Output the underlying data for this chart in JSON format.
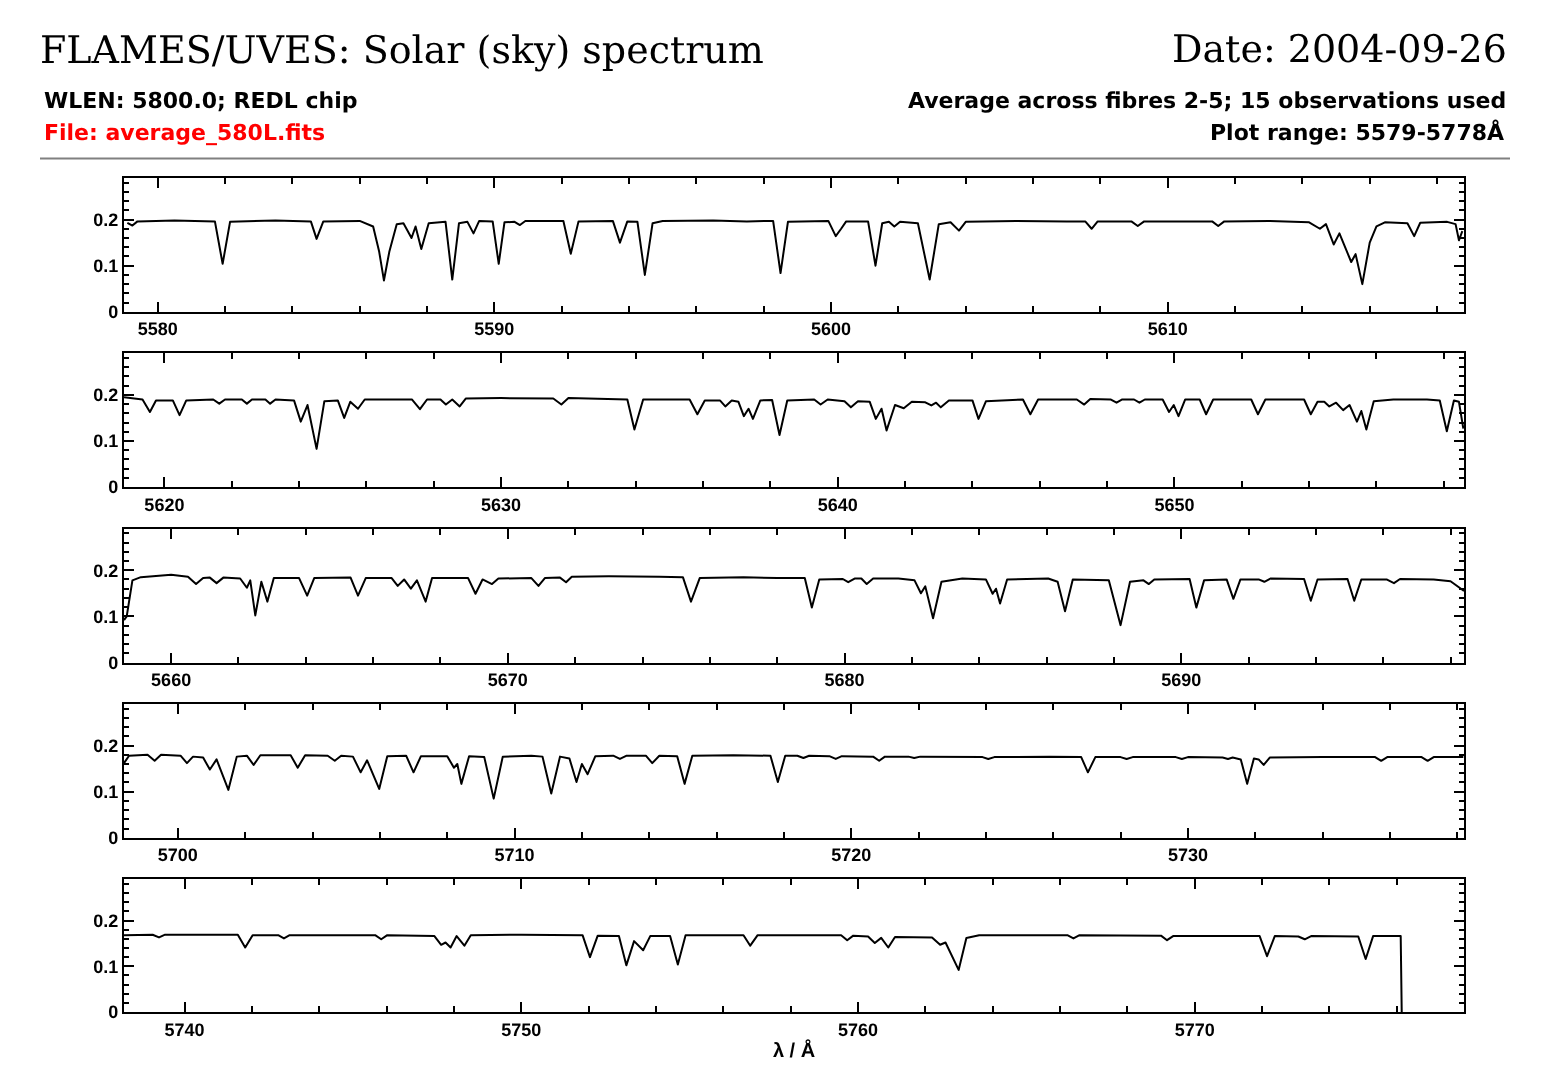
{
  "chart_data": [
    {
      "type": "line",
      "title": "FLAMES/UVES: Solar (sky) spectrum",
      "annotations": [
        "Date: 2004-09-26",
        "WLEN: 5800.0; REDL chip",
        "File: average_580L.fits",
        "Average across fibres 2-5; 15 observations used",
        "Plot range: 5579-5778Å"
      ],
      "color": "#000000",
      "xlim": [
        5579,
        5618.8
      ],
      "ylim": [
        0,
        0.29
      ],
      "xticks": [
        5580,
        {
          "value": 5582,
          "label": null
        },
        {
          "value": 5584,
          "label": null
        },
        {
          "value": 5586,
          "label": null
        },
        {
          "value": 5588,
          "label": null
        },
        5590,
        {
          "value": 5592,
          "label": null
        },
        {
          "value": 5594,
          "label": null
        },
        {
          "value": 5596,
          "label": null
        },
        {
          "value": 5598,
          "label": null
        },
        5600,
        {
          "value": 5602,
          "label": null
        },
        {
          "value": 5604,
          "label": null
        },
        {
          "value": 5606,
          "label": null
        },
        {
          "value": 5608,
          "label": null
        },
        5610,
        {
          "value": 5612,
          "label": null
        },
        {
          "value": 5614,
          "label": null
        },
        {
          "value": 5616,
          "label": null
        },
        {
          "value": 5618,
          "label": null
        }
      ],
      "yticks": [
        0,
        {
          "value": 0.02,
          "label": null
        },
        {
          "value": 0.04,
          "label": null
        },
        {
          "value": 0.06,
          "label": null
        },
        {
          "value": 0.08,
          "label": null
        },
        0.1,
        {
          "value": 0.12,
          "label": null
        },
        {
          "value": 0.14,
          "label": null
        },
        {
          "value": 0.16,
          "label": null
        },
        {
          "value": 0.18,
          "label": null
        },
        0.2,
        {
          "value": 0.22,
          "label": null
        },
        {
          "value": 0.24,
          "label": null
        },
        {
          "value": 0.26,
          "label": null
        },
        {
          "value": 0.28,
          "label": null
        }
      ],
      "x": [
        5579.1,
        5579.25,
        5579.4,
        5580.5,
        5581.7,
        5581.93,
        5582.15,
        5583.5,
        5584.55,
        5584.72,
        5584.92,
        5586.0,
        5586.4,
        5586.58,
        5586.72,
        5586.88,
        5587.1,
        5587.3,
        5587.54,
        5587.66,
        5587.83,
        5588.05,
        5588.55,
        5588.75,
        5588.95,
        5589.2,
        5589.38,
        5589.55,
        5589.95,
        5590.13,
        5590.3,
        5590.6,
        5590.76,
        5590.92,
        5592.05,
        5592.27,
        5592.5,
        5593.52,
        5593.73,
        5593.95,
        5594.25,
        5594.47,
        5594.7,
        5595.0,
        5596.5,
        5597.5,
        5598.28,
        5598.5,
        5598.72,
        5599.92,
        5600.14,
        5600.3,
        5600.45,
        5601.1,
        5601.32,
        5601.52,
        5601.72,
        5601.88,
        5602.05,
        5602.58,
        5602.93,
        5603.2,
        5603.55,
        5603.8,
        5604.0,
        5605.5,
        5607.0,
        5607.55,
        5607.74,
        5607.92,
        5608.92,
        5609.11,
        5609.3,
        5611.32,
        5611.5,
        5611.68,
        5613.0,
        5614.2,
        5614.52,
        5614.7,
        5614.93,
        5615.1,
        5615.45,
        5615.58,
        5615.78,
        5616.0,
        5616.2,
        5616.45,
        5617.12,
        5617.32,
        5617.5,
        5618.3,
        5618.55,
        5618.65,
        5618.75
      ],
      "values": [
        0.193,
        0.187,
        0.196,
        0.198,
        0.196,
        0.104,
        0.195,
        0.198,
        0.196,
        0.158,
        0.196,
        0.197,
        0.185,
        0.13,
        0.068,
        0.13,
        0.19,
        0.192,
        0.16,
        0.185,
        0.136,
        0.192,
        0.195,
        0.07,
        0.192,
        0.195,
        0.17,
        0.197,
        0.196,
        0.104,
        0.194,
        0.195,
        0.188,
        0.197,
        0.197,
        0.126,
        0.196,
        0.197,
        0.15,
        0.196,
        0.195,
        0.08,
        0.192,
        0.197,
        0.198,
        0.196,
        0.197,
        0.084,
        0.195,
        0.197,
        0.164,
        0.18,
        0.196,
        0.196,
        0.1,
        0.192,
        0.195,
        0.185,
        0.195,
        0.192,
        0.07,
        0.19,
        0.194,
        0.176,
        0.195,
        0.197,
        0.196,
        0.196,
        0.18,
        0.196,
        0.196,
        0.186,
        0.196,
        0.196,
        0.186,
        0.196,
        0.197,
        0.194,
        0.18,
        0.19,
        0.146,
        0.17,
        0.108,
        0.125,
        0.06,
        0.15,
        0.185,
        0.194,
        0.192,
        0.164,
        0.193,
        0.195,
        0.19,
        0.155,
        0.175
      ]
    },
    {
      "type": "line",
      "color": "#000000",
      "xlim": [
        5618.8,
        5658.6
      ],
      "ylim": [
        0,
        0.29
      ],
      "xticks": [
        5620,
        {
          "value": 5622,
          "label": null
        },
        {
          "value": 5624,
          "label": null
        },
        {
          "value": 5626,
          "label": null
        },
        {
          "value": 5628,
          "label": null
        },
        5630,
        {
          "value": 5632,
          "label": null
        },
        {
          "value": 5634,
          "label": null
        },
        {
          "value": 5636,
          "label": null
        },
        {
          "value": 5638,
          "label": null
        },
        5640,
        {
          "value": 5642,
          "label": null
        },
        {
          "value": 5644,
          "label": null
        },
        {
          "value": 5646,
          "label": null
        },
        {
          "value": 5648,
          "label": null
        },
        5650,
        {
          "value": 5652,
          "label": null
        },
        {
          "value": 5654,
          "label": null
        },
        {
          "value": 5656,
          "label": null
        },
        {
          "value": 5658,
          "label": null
        }
      ],
      "yticks": [
        0,
        {
          "value": 0.02,
          "label": null
        },
        {
          "value": 0.04,
          "label": null
        },
        {
          "value": 0.06,
          "label": null
        },
        {
          "value": 0.08,
          "label": null
        },
        0.1,
        {
          "value": 0.12,
          "label": null
        },
        {
          "value": 0.14,
          "label": null
        },
        {
          "value": 0.16,
          "label": null
        },
        {
          "value": 0.18,
          "label": null
        },
        0.2,
        {
          "value": 0.22,
          "label": null
        },
        {
          "value": 0.24,
          "label": null
        },
        {
          "value": 0.26,
          "label": null
        },
        {
          "value": 0.28,
          "label": null
        }
      ],
      "x": [
        5618.8,
        5619.35,
        5619.57,
        5619.75,
        5620.25,
        5620.45,
        5620.65,
        5621.45,
        5621.63,
        5621.8,
        5622.3,
        5622.45,
        5622.6,
        5623.0,
        5623.14,
        5623.3,
        5623.85,
        5624.05,
        5624.25,
        5624.52,
        5624.75,
        5625.15,
        5625.34,
        5625.52,
        5625.75,
        5625.95,
        5627.35,
        5627.59,
        5627.8,
        5628.2,
        5628.36,
        5628.55,
        5628.77,
        5628.95,
        5630.0,
        5631.55,
        5631.79,
        5632.0,
        5633.75,
        5633.96,
        5634.22,
        5635.6,
        5635.83,
        5636.05,
        5636.5,
        5636.66,
        5636.85,
        5637.05,
        5637.21,
        5637.35,
        5637.48,
        5637.7,
        5638.05,
        5638.27,
        5638.5,
        5639.3,
        5639.49,
        5639.7,
        5640.2,
        5640.39,
        5640.6,
        5640.95,
        5641.13,
        5641.3,
        5641.45,
        5641.7,
        5641.96,
        5642.2,
        5642.6,
        5642.78,
        5642.92,
        5643.06,
        5643.3,
        5644.0,
        5644.18,
        5644.4,
        5645.5,
        5645.72,
        5645.95,
        5647.1,
        5647.32,
        5647.5,
        5648.1,
        5648.28,
        5648.45,
        5648.8,
        5648.96,
        5649.12,
        5649.65,
        5649.84,
        5649.98,
        5650.12,
        5650.32,
        5650.75,
        5650.94,
        5651.15,
        5652.28,
        5652.48,
        5652.7,
        5653.85,
        5654.05,
        5654.25,
        5654.45,
        5654.6,
        5654.8,
        5655.01,
        5655.2,
        5655.42,
        5655.55,
        5655.7,
        5655.92,
        5656.5,
        5657.5,
        5657.88,
        5658.09,
        5658.3,
        5658.45,
        5658.58
      ],
      "values": [
        0.195,
        0.19,
        0.163,
        0.188,
        0.188,
        0.156,
        0.188,
        0.19,
        0.181,
        0.19,
        0.19,
        0.181,
        0.19,
        0.19,
        0.181,
        0.19,
        0.188,
        0.142,
        0.178,
        0.083,
        0.186,
        0.188,
        0.15,
        0.185,
        0.17,
        0.19,
        0.19,
        0.169,
        0.19,
        0.19,
        0.179,
        0.19,
        0.175,
        0.192,
        0.193,
        0.192,
        0.179,
        0.193,
        0.19,
        0.125,
        0.19,
        0.19,
        0.158,
        0.188,
        0.188,
        0.175,
        0.188,
        0.185,
        0.154,
        0.17,
        0.148,
        0.188,
        0.189,
        0.113,
        0.188,
        0.19,
        0.179,
        0.19,
        0.186,
        0.173,
        0.186,
        0.185,
        0.148,
        0.17,
        0.123,
        0.178,
        0.171,
        0.185,
        0.184,
        0.177,
        0.183,
        0.173,
        0.188,
        0.188,
        0.148,
        0.186,
        0.19,
        0.158,
        0.19,
        0.19,
        0.179,
        0.191,
        0.19,
        0.183,
        0.19,
        0.19,
        0.183,
        0.19,
        0.19,
        0.163,
        0.178,
        0.154,
        0.19,
        0.19,
        0.158,
        0.19,
        0.19,
        0.158,
        0.19,
        0.19,
        0.158,
        0.185,
        0.185,
        0.175,
        0.183,
        0.167,
        0.178,
        0.142,
        0.165,
        0.125,
        0.186,
        0.19,
        0.19,
        0.188,
        0.121,
        0.188,
        0.185,
        0.127
      ]
    },
    {
      "type": "line",
      "color": "#000000",
      "xlim": [
        5658.6,
        5698.4
      ],
      "ylim": [
        0,
        0.29
      ],
      "xticks": [
        5660,
        {
          "value": 5662,
          "label": null
        },
        {
          "value": 5664,
          "label": null
        },
        {
          "value": 5666,
          "label": null
        },
        {
          "value": 5668,
          "label": null
        },
        5670,
        {
          "value": 5672,
          "label": null
        },
        {
          "value": 5674,
          "label": null
        },
        {
          "value": 5676,
          "label": null
        },
        {
          "value": 5678,
          "label": null
        },
        5680,
        {
          "value": 5682,
          "label": null
        },
        {
          "value": 5684,
          "label": null
        },
        {
          "value": 5686,
          "label": null
        },
        {
          "value": 5688,
          "label": null
        },
        5690,
        {
          "value": 5692,
          "label": null
        },
        {
          "value": 5694,
          "label": null
        },
        {
          "value": 5696,
          "label": null
        },
        {
          "value": 5698,
          "label": null
        }
      ],
      "yticks": [
        0,
        {
          "value": 0.02,
          "label": null
        },
        {
          "value": 0.04,
          "label": null
        },
        {
          "value": 0.06,
          "label": null
        },
        {
          "value": 0.08,
          "label": null
        },
        0.1,
        {
          "value": 0.12,
          "label": null
        },
        {
          "value": 0.14,
          "label": null
        },
        {
          "value": 0.16,
          "label": null
        },
        {
          "value": 0.18,
          "label": null
        },
        0.2,
        {
          "value": 0.22,
          "label": null
        },
        {
          "value": 0.24,
          "label": null
        },
        {
          "value": 0.26,
          "label": null
        },
        {
          "value": 0.28,
          "label": null
        }
      ],
      "x": [
        5658.6,
        5658.68,
        5658.85,
        5659.1,
        5660.0,
        5660.5,
        5660.74,
        5660.95,
        5661.15,
        5661.35,
        5661.55,
        5662.05,
        5662.25,
        5662.35,
        5662.5,
        5662.68,
        5662.86,
        5663.05,
        5663.8,
        5664.04,
        5664.25,
        5665.33,
        5665.55,
        5665.78,
        5666.55,
        5666.73,
        5666.92,
        5667.12,
        5667.3,
        5667.56,
        5667.75,
        5668.82,
        5669.04,
        5669.25,
        5669.53,
        5669.72,
        5670.7,
        5670.91,
        5671.1,
        5671.55,
        5671.73,
        5671.9,
        5673.0,
        5674.5,
        5675.2,
        5675.44,
        5675.7,
        5677.0,
        5678.0,
        5678.82,
        5679.03,
        5679.25,
        5679.95,
        5680.11,
        5680.3,
        5680.5,
        5680.66,
        5680.85,
        5681.6,
        5682.08,
        5682.27,
        5682.4,
        5682.63,
        5682.88,
        5683.5,
        5684.2,
        5684.4,
        5684.5,
        5684.62,
        5684.83,
        5686.05,
        5686.33,
        5686.55,
        5686.78,
        5687.85,
        5688.2,
        5688.48,
        5688.88,
        5689.04,
        5689.2,
        5690.25,
        5690.45,
        5690.68,
        5691.35,
        5691.55,
        5691.76,
        5692.3,
        5692.47,
        5692.65,
        5693.65,
        5693.85,
        5694.05,
        5694.94,
        5695.14,
        5695.35,
        5696.1,
        5696.32,
        5696.5,
        5697.5,
        5698.0,
        5698.4
      ],
      "values": [
        0.092,
        0.1,
        0.178,
        0.185,
        0.19,
        0.186,
        0.17,
        0.183,
        0.184,
        0.172,
        0.184,
        0.182,
        0.162,
        0.178,
        0.102,
        0.175,
        0.132,
        0.183,
        0.183,
        0.145,
        0.183,
        0.184,
        0.145,
        0.183,
        0.183,
        0.166,
        0.18,
        0.16,
        0.178,
        0.132,
        0.183,
        0.183,
        0.149,
        0.18,
        0.17,
        0.182,
        0.183,
        0.166,
        0.183,
        0.184,
        0.174,
        0.186,
        0.187,
        0.186,
        0.185,
        0.132,
        0.183,
        0.185,
        0.183,
        0.183,
        0.119,
        0.18,
        0.181,
        0.174,
        0.182,
        0.182,
        0.17,
        0.182,
        0.182,
        0.178,
        0.15,
        0.165,
        0.096,
        0.175,
        0.182,
        0.18,
        0.149,
        0.16,
        0.128,
        0.18,
        0.182,
        0.175,
        0.111,
        0.18,
        0.178,
        0.081,
        0.175,
        0.178,
        0.17,
        0.18,
        0.181,
        0.119,
        0.178,
        0.18,
        0.138,
        0.18,
        0.18,
        0.175,
        0.182,
        0.181,
        0.134,
        0.18,
        0.181,
        0.134,
        0.18,
        0.18,
        0.172,
        0.181,
        0.18,
        0.176,
        0.155
      ]
    },
    {
      "type": "line",
      "color": "#000000",
      "xlim": [
        5698.4,
        5738.2
      ],
      "ylim": [
        0,
        0.29
      ],
      "xticks": [
        5700,
        {
          "value": 5702,
          "label": null
        },
        {
          "value": 5704,
          "label": null
        },
        {
          "value": 5706,
          "label": null
        },
        {
          "value": 5708,
          "label": null
        },
        5710,
        {
          "value": 5712,
          "label": null
        },
        {
          "value": 5714,
          "label": null
        },
        {
          "value": 5716,
          "label": null
        },
        {
          "value": 5718,
          "label": null
        },
        5720,
        {
          "value": 5722,
          "label": null
        },
        {
          "value": 5724,
          "label": null
        },
        {
          "value": 5726,
          "label": null
        },
        {
          "value": 5728,
          "label": null
        },
        5730,
        {
          "value": 5732,
          "label": null
        },
        {
          "value": 5734,
          "label": null
        },
        {
          "value": 5736,
          "label": null
        },
        {
          "value": 5738,
          "label": null
        }
      ],
      "yticks": [
        0,
        {
          "value": 0.02,
          "label": null
        },
        {
          "value": 0.04,
          "label": null
        },
        {
          "value": 0.06,
          "label": null
        },
        {
          "value": 0.08,
          "label": null
        },
        0.1,
        {
          "value": 0.12,
          "label": null
        },
        {
          "value": 0.14,
          "label": null
        },
        {
          "value": 0.16,
          "label": null
        },
        {
          "value": 0.18,
          "label": null
        },
        0.2,
        {
          "value": 0.22,
          "label": null
        },
        {
          "value": 0.24,
          "label": null
        },
        {
          "value": 0.26,
          "label": null
        },
        {
          "value": 0.28,
          "label": null
        }
      ],
      "x": [
        5698.4,
        5698.55,
        5699.1,
        5699.31,
        5699.5,
        5700.08,
        5700.27,
        5700.45,
        5700.75,
        5700.95,
        5701.15,
        5701.5,
        5701.75,
        5702.05,
        5702.25,
        5702.45,
        5703.35,
        5703.56,
        5703.78,
        5704.45,
        5704.66,
        5704.85,
        5705.2,
        5705.43,
        5705.62,
        5705.98,
        5706.22,
        5706.78,
        5707.0,
        5707.22,
        5708.0,
        5708.2,
        5708.3,
        5708.42,
        5708.65,
        5709.1,
        5709.38,
        5709.65,
        5710.5,
        5710.83,
        5711.09,
        5711.35,
        5711.63,
        5711.84,
        5712.0,
        5712.17,
        5712.4,
        5712.93,
        5713.13,
        5713.33,
        5713.9,
        5714.09,
        5714.3,
        5714.83,
        5715.05,
        5715.28,
        5716.5,
        5717.6,
        5717.82,
        5718.04,
        5718.4,
        5718.58,
        5718.75,
        5719.35,
        5719.54,
        5719.72,
        5720.65,
        5720.83,
        5721.0,
        5721.7,
        5721.87,
        5722.05,
        5723.9,
        5724.07,
        5724.25,
        5725.9,
        5726.83,
        5727.03,
        5727.25,
        5728.0,
        5728.18,
        5728.36,
        5729.64,
        5729.82,
        5730.0,
        5731.03,
        5731.19,
        5731.33,
        5731.57,
        5731.76,
        5731.96,
        5732.1,
        5732.25,
        5732.43,
        5734.0,
        5735.56,
        5735.74,
        5735.92,
        5736.94,
        5737.12,
        5737.3,
        5738.18
      ],
      "values": [
        0.162,
        0.178,
        0.18,
        0.167,
        0.18,
        0.178,
        0.162,
        0.176,
        0.174,
        0.148,
        0.17,
        0.104,
        0.176,
        0.178,
        0.158,
        0.179,
        0.179,
        0.152,
        0.179,
        0.178,
        0.167,
        0.178,
        0.176,
        0.142,
        0.168,
        0.106,
        0.177,
        0.178,
        0.142,
        0.177,
        0.177,
        0.152,
        0.16,
        0.117,
        0.177,
        0.175,
        0.085,
        0.176,
        0.178,
        0.176,
        0.096,
        0.176,
        0.172,
        0.121,
        0.16,
        0.138,
        0.177,
        0.178,
        0.171,
        0.178,
        0.178,
        0.162,
        0.178,
        0.177,
        0.117,
        0.178,
        0.179,
        0.178,
        0.121,
        0.178,
        0.178,
        0.173,
        0.178,
        0.177,
        0.171,
        0.177,
        0.176,
        0.167,
        0.176,
        0.176,
        0.173,
        0.176,
        0.175,
        0.171,
        0.175,
        0.176,
        0.175,
        0.142,
        0.175,
        0.175,
        0.171,
        0.175,
        0.175,
        0.171,
        0.175,
        0.174,
        0.171,
        0.174,
        0.17,
        0.117,
        0.172,
        0.17,
        0.158,
        0.174,
        0.175,
        0.175,
        0.167,
        0.175,
        0.175,
        0.167,
        0.175,
        0.175
      ]
    },
    {
      "type": "line",
      "xlabel": "λ / Å",
      "color": "#000000",
      "xlim": [
        5738.2,
        5778
      ],
      "ylim": [
        0,
        0.29
      ],
      "xticks": [
        5740,
        {
          "value": 5742,
          "label": null
        },
        {
          "value": 5744,
          "label": null
        },
        {
          "value": 5746,
          "label": null
        },
        {
          "value": 5748,
          "label": null
        },
        5750,
        {
          "value": 5752,
          "label": null
        },
        {
          "value": 5754,
          "label": null
        },
        {
          "value": 5756,
          "label": null
        },
        {
          "value": 5758,
          "label": null
        },
        5760,
        {
          "value": 5762,
          "label": null
        },
        {
          "value": 5764,
          "label": null
        },
        {
          "value": 5766,
          "label": null
        },
        {
          "value": 5768,
          "label": null
        },
        5770,
        {
          "value": 5772,
          "label": null
        },
        {
          "value": 5774,
          "label": null
        },
        {
          "value": 5776,
          "label": null
        }
      ],
      "yticks": [
        0,
        {
          "value": 0.02,
          "label": null
        },
        {
          "value": 0.04,
          "label": null
        },
        {
          "value": 0.06,
          "label": null
        },
        {
          "value": 0.08,
          "label": null
        },
        0.1,
        {
          "value": 0.12,
          "label": null
        },
        {
          "value": 0.14,
          "label": null
        },
        {
          "value": 0.16,
          "label": null
        },
        {
          "value": 0.18,
          "label": null
        },
        0.2,
        {
          "value": 0.22,
          "label": null
        },
        {
          "value": 0.24,
          "label": null
        },
        {
          "value": 0.26,
          "label": null
        },
        {
          "value": 0.28,
          "label": null
        }
      ],
      "x": [
        5738.2,
        5739.05,
        5739.24,
        5739.42,
        5741.58,
        5741.8,
        5742.02,
        5742.78,
        5742.95,
        5743.12,
        5745.66,
        5745.84,
        5746.02,
        5747.42,
        5747.62,
        5747.75,
        5747.9,
        5748.08,
        5748.31,
        5748.5,
        5750.0,
        5751.82,
        5752.04,
        5752.27,
        5752.9,
        5753.12,
        5753.35,
        5753.62,
        5753.83,
        5754.42,
        5754.65,
        5754.88,
        5756.6,
        5756.8,
        5757.02,
        5759.5,
        5759.68,
        5759.86,
        5760.3,
        5760.5,
        5760.69,
        5760.9,
        5761.1,
        5762.2,
        5762.44,
        5762.6,
        5762.99,
        5763.22,
        5763.6,
        5766.22,
        5766.4,
        5766.58,
        5769.0,
        5769.18,
        5769.36,
        5771.93,
        5772.15,
        5772.38,
        5773.08,
        5773.27,
        5773.46,
        5774.86,
        5775.08,
        5775.3,
        5776.12,
        5776.15
      ],
      "values": [
        0.168,
        0.169,
        0.163,
        0.169,
        0.169,
        0.141,
        0.168,
        0.168,
        0.161,
        0.168,
        0.168,
        0.159,
        0.168,
        0.166,
        0.147,
        0.152,
        0.141,
        0.166,
        0.145,
        0.168,
        0.169,
        0.168,
        0.12,
        0.167,
        0.166,
        0.102,
        0.155,
        0.135,
        0.166,
        0.166,
        0.104,
        0.168,
        0.168,
        0.145,
        0.168,
        0.168,
        0.157,
        0.167,
        0.165,
        0.151,
        0.162,
        0.141,
        0.164,
        0.163,
        0.147,
        0.152,
        0.092,
        0.162,
        0.168,
        0.168,
        0.161,
        0.168,
        0.167,
        0.157,
        0.166,
        0.166,
        0.122,
        0.166,
        0.165,
        0.159,
        0.166,
        0.165,
        0.116,
        0.166,
        0.166,
        0
      ]
    }
  ]
}
